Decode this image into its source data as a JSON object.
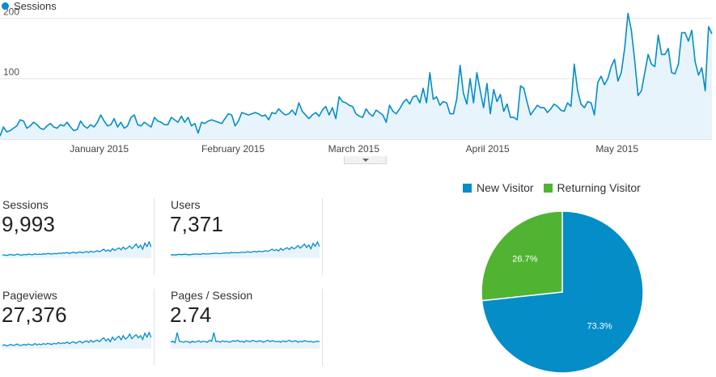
{
  "chart_data": [
    {
      "type": "area",
      "series": [
        {
          "name": "Sessions",
          "color": "#058dc7"
        }
      ],
      "x_start": "2014-12-15",
      "x_end": "2015-05-29",
      "x_tick_labels": [
        "January 2015",
        "February 2015",
        "March 2015",
        "April 2015",
        "May 2015"
      ],
      "y_tick_labels": [
        "200",
        "100"
      ],
      "ylim": [
        0,
        210
      ],
      "grid": true,
      "values": [
        5,
        20,
        12,
        14,
        18,
        22,
        32,
        30,
        18,
        22,
        28,
        24,
        18,
        16,
        22,
        26,
        20,
        18,
        24,
        22,
        28,
        20,
        14,
        16,
        30,
        22,
        18,
        24,
        20,
        28,
        40,
        30,
        22,
        24,
        34,
        20,
        28,
        18,
        22,
        36,
        40,
        24,
        22,
        28,
        24,
        20,
        36,
        30,
        28,
        24,
        24,
        36,
        32,
        28,
        38,
        28,
        36,
        22,
        26,
        10,
        28,
        26,
        30,
        32,
        30,
        28,
        26,
        34,
        42,
        40,
        22,
        30,
        44,
        42,
        40,
        42,
        44,
        42,
        38,
        40,
        32,
        44,
        42,
        50,
        44,
        40,
        42,
        48,
        40,
        60,
        46,
        40,
        34,
        40,
        44,
        38,
        48,
        54,
        40,
        52,
        34,
        70,
        62,
        60,
        56,
        54,
        42,
        38,
        36,
        50,
        42,
        38,
        48,
        44,
        40,
        28,
        56,
        46,
        42,
        50,
        60,
        66,
        58,
        70,
        72,
        60,
        84,
        60,
        110,
        66,
        70,
        56,
        62,
        60,
        42,
        42,
        66,
        122,
        76,
        58,
        100,
        60,
        110,
        80,
        52,
        92,
        42,
        82,
        62,
        74,
        46,
        58,
        36,
        36,
        32,
        88,
        84,
        60,
        40,
        48,
        56,
        52,
        52,
        44,
        50,
        58,
        54,
        48,
        46,
        60,
        54,
        124,
        80,
        58,
        52,
        62,
        60,
        40,
        94,
        104,
        90,
        100,
        120,
        132,
        96,
        110,
        150,
        208,
        180,
        130,
        72,
        80,
        110,
        140,
        124,
        120,
        172,
        140,
        140,
        150,
        110,
        108,
        124,
        176,
        176,
        162,
        180,
        128,
        106,
        118,
        80,
        186,
        174
      ]
    },
    {
      "type": "pie",
      "categories": [
        "New Visitor",
        "Returning Visitor"
      ],
      "values": [
        73.3,
        26.7
      ],
      "labels": [
        "73.3%",
        "26.7%"
      ],
      "colors": [
        "#058dc7",
        "#50b432"
      ],
      "legend": "top"
    }
  ],
  "metrics": [
    {
      "label": "Sessions",
      "value": "9,993",
      "spark": [
        4,
        5,
        3,
        5,
        6,
        4,
        5,
        7,
        5,
        4,
        6,
        5,
        7,
        6,
        5,
        8,
        6,
        7,
        6,
        8,
        7,
        9,
        8,
        7,
        9,
        8,
        10,
        9,
        11,
        10,
        12,
        9,
        11,
        13,
        10,
        12,
        14,
        11,
        13,
        15,
        12,
        16,
        13,
        15,
        17,
        14,
        18,
        22,
        16,
        20,
        15,
        24,
        18,
        22,
        26,
        20,
        28,
        22,
        26,
        32,
        24,
        30,
        38,
        26,
        34,
        22,
        40,
        30,
        44,
        28
      ]
    },
    {
      "label": "Users",
      "value": "7,371",
      "spark": [
        4,
        5,
        4,
        5,
        6,
        5,
        6,
        6,
        5,
        5,
        6,
        6,
        7,
        6,
        6,
        8,
        7,
        7,
        7,
        8,
        8,
        9,
        8,
        8,
        9,
        9,
        10,
        9,
        11,
        10,
        11,
        10,
        11,
        12,
        11,
        12,
        13,
        11,
        13,
        14,
        12,
        15,
        13,
        14,
        16,
        14,
        17,
        20,
        16,
        19,
        15,
        22,
        17,
        21,
        24,
        19,
        26,
        21,
        24,
        30,
        23,
        28,
        34,
        25,
        31,
        21,
        36,
        28,
        40,
        27
      ]
    },
    {
      "label": "Pageviews",
      "value": "27,376",
      "spark": [
        4,
        6,
        3,
        5,
        7,
        4,
        6,
        8,
        4,
        5,
        7,
        5,
        8,
        6,
        5,
        9,
        6,
        8,
        6,
        9,
        7,
        10,
        8,
        7,
        10,
        8,
        12,
        9,
        11,
        10,
        13,
        9,
        12,
        14,
        10,
        13,
        15,
        11,
        14,
        16,
        12,
        18,
        13,
        16,
        18,
        14,
        20,
        24,
        16,
        22,
        14,
        26,
        18,
        24,
        28,
        19,
        30,
        21,
        25,
        34,
        22,
        28,
        32,
        24,
        30,
        20,
        36,
        26,
        38,
        24
      ]
    },
    {
      "label": "Pages / Session",
      "value": "2.74",
      "spark": [
        10,
        12,
        9,
        30,
        12,
        11,
        10,
        12,
        11,
        9,
        12,
        10,
        11,
        13,
        10,
        12,
        11,
        10,
        14,
        12,
        30,
        11,
        12,
        10,
        13,
        11,
        12,
        10,
        11,
        13,
        12,
        14,
        11,
        12,
        10,
        13,
        12,
        11,
        14,
        12,
        11,
        13,
        12,
        10,
        12,
        14,
        11,
        13,
        12,
        11,
        12,
        10,
        13,
        11,
        12,
        14,
        11,
        12,
        13,
        10,
        12,
        11,
        13,
        12,
        11,
        12,
        10,
        11,
        12,
        11
      ]
    }
  ]
}
